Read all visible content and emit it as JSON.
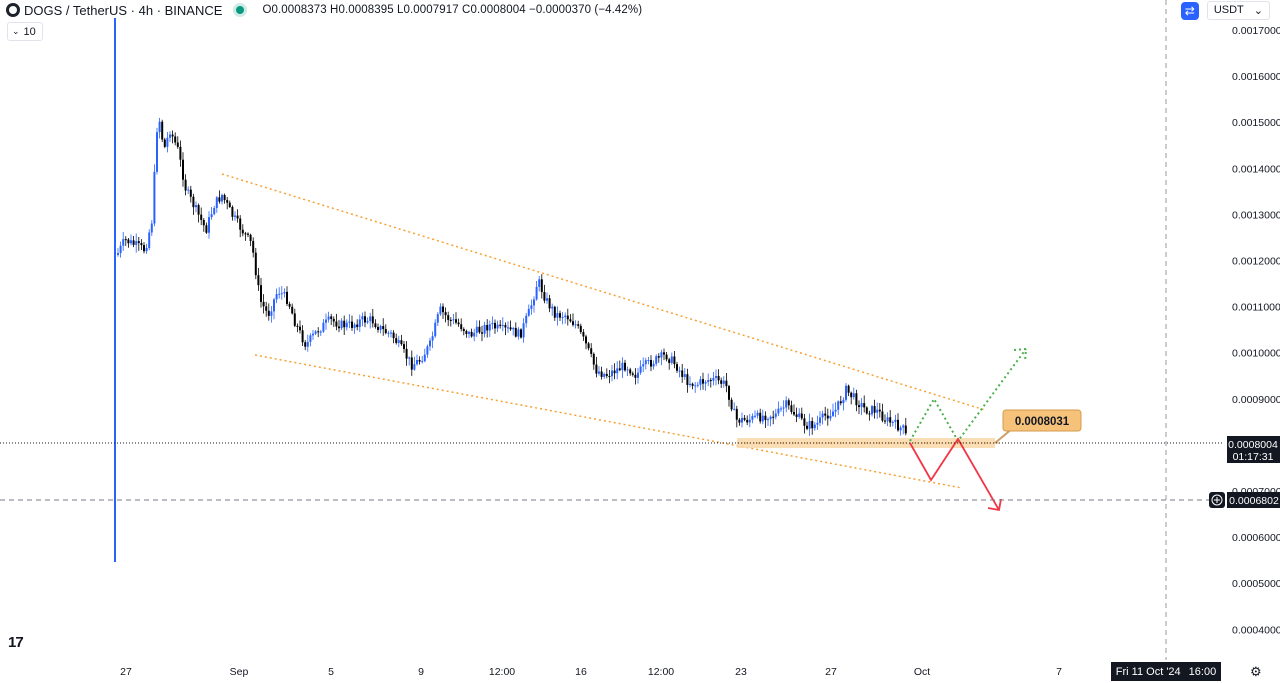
{
  "header": {
    "symbol_title": "DOGS / TetherUS · 4h · BINANCE",
    "ohlc": "O0.0008373 H0.0008395 L0.0007917 C0.0008004 −0.0000370 (−4.42%)",
    "volume_toggle": "10"
  },
  "currency": {
    "label": "USDT",
    "chevron": "⌄",
    "switch_icon": "swap-icon"
  },
  "price_axis": {
    "ticks": [
      "0.0017000",
      "0.0016000",
      "0.0015000",
      "0.0014000",
      "0.0013000",
      "0.0012000",
      "0.0011000",
      "0.0010000",
      "0.0009000",
      "0.0007000",
      "0.0006000",
      "0.0005000",
      "0.0004000"
    ],
    "last_price": "0.0008004",
    "countdown": "01:17:31",
    "crosshair_price": "0.0006802"
  },
  "time_axis": {
    "ticks": [
      "27",
      "Sep",
      "5",
      "9",
      "12:00",
      "16",
      "12:00",
      "23",
      "27",
      "Oct",
      "7"
    ],
    "cursor_date": "Fri 11 Oct '24",
    "cursor_time": "16:00"
  },
  "annotation": {
    "label": "0.0008031"
  },
  "logo_text": "17",
  "colors": {
    "up": "#2962ff",
    "down": "#000000",
    "channel": "#f7a133",
    "bull_path": "#4caf50",
    "bear_path": "#f23645",
    "zone": "#f8d7a8",
    "label_bg": "#f6c27a"
  }
}
